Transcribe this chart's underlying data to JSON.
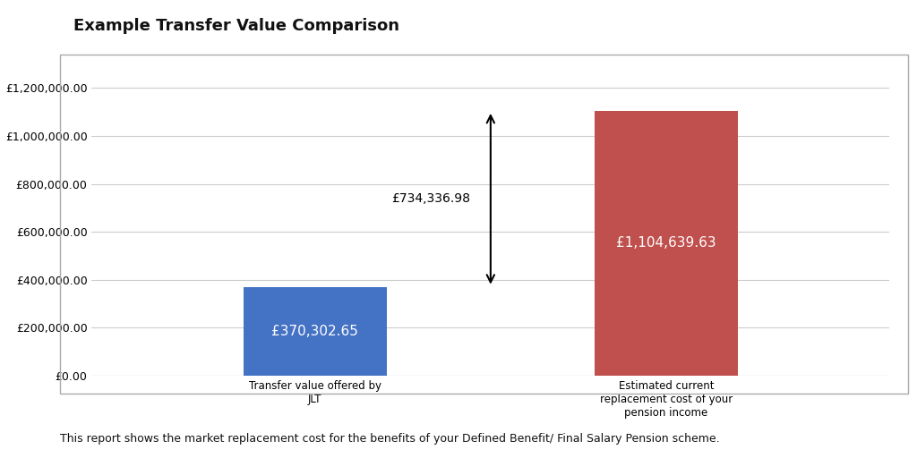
{
  "title": "Example Transfer Value Comparison",
  "categories": [
    "Transfer value offered by\nJLT",
    "Estimated current\nreplacement cost of your\npension income"
  ],
  "values": [
    370302.65,
    1104639.63
  ],
  "bar_colors": [
    "#4472C4",
    "#C0504D"
  ],
  "bar_labels": [
    "£370,302.65",
    "£1,104,639.63"
  ],
  "diff_label": "£734,336.98",
  "diff_value": 734336.98,
  "ylim": [
    0,
    1300000
  ],
  "yticks": [
    0,
    200000,
    400000,
    600000,
    800000,
    1000000,
    1200000
  ],
  "ytick_labels": [
    "£0.00",
    "£200,000.00",
    "£400,000.00",
    "£600,000.00",
    "£800,000.00",
    "£1,000,000.00",
    "£1,200,000.00"
  ],
  "footer": "This report shows the market replacement cost for the benefits of your Defined Benefit/ Final Salary Pension scheme.",
  "background_color": "#ffffff",
  "plot_bg_color": "#ffffff",
  "grid_color": "#cccccc",
  "bar_label_color": "#ffffff",
  "bar_label_fontsize": 11,
  "title_fontsize": 13,
  "tick_fontsize": 9,
  "xtick_fontsize": 8.5,
  "footer_fontsize": 9,
  "bar_width": 0.18,
  "x_positions": [
    0.28,
    0.72
  ]
}
